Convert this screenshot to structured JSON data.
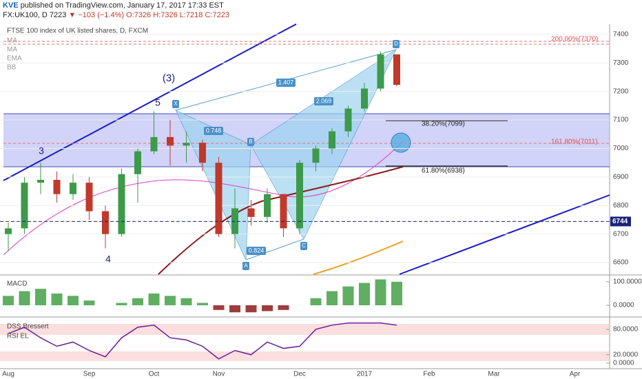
{
  "header": {
    "author": "KVE",
    "published": "published on TradingView.com, January 17, 2017 17:33 EST",
    "symbol": "FX:UK100, D",
    "last": "7223",
    "change": "▼ −103 (−1.4%)",
    "ohlc": "O:7326 H:7326 L:7218 C:7223"
  },
  "annotations": {
    "waves": [
      "3",
      "4",
      "5",
      "(3)"
    ],
    "points": [
      "X",
      "A",
      "B",
      "C",
      "D"
    ],
    "ratios": [
      "1.407",
      "2.069",
      "0.748",
      "0.824"
    ],
    "fib": [
      "200.00%(7370)",
      "161.80%(7011)",
      "38.20%(7099)",
      "61.80%(6938)"
    ]
  },
  "chart_data": [
    {
      "type": "candlestick",
      "title": "FTSE 100 index of UK listed shares, D, FXCM",
      "indicators": [
        "MA",
        "MA",
        "EMA",
        "BB"
      ],
      "categories": [
        "Aug",
        null,
        null,
        null,
        null,
        "Sep",
        null,
        null,
        null,
        "Oct",
        null,
        null,
        null,
        "Nov",
        null,
        null,
        null,
        null,
        "Dec",
        null,
        null,
        null,
        "2017",
        null,
        null,
        null,
        "Feb",
        null,
        null,
        null,
        "Mar",
        null,
        null,
        null,
        null,
        "Apr",
        null
      ],
      "open": [
        6700,
        6720,
        6880,
        6890,
        6840,
        6880,
        6780,
        6700,
        6910,
        6990,
        7040,
        7010,
        7020,
        6950,
        6700,
        6790,
        6760,
        6840,
        6720,
        6950,
        7000,
        7060,
        7140,
        7210,
        7330,
        null,
        null,
        null,
        null,
        null,
        null,
        null,
        null,
        null,
        null,
        null,
        null
      ],
      "high": [
        6740,
        6900,
        6950,
        6920,
        6910,
        6900,
        6800,
        6930,
        7000,
        7130,
        7100,
        7060,
        7030,
        6970,
        6860,
        6820,
        6860,
        6840,
        6960,
        7010,
        7070,
        7150,
        7230,
        7340,
        7330,
        null,
        null,
        null,
        null,
        null,
        null,
        null,
        null,
        null,
        null,
        null,
        null
      ],
      "low": [
        6640,
        6700,
        6840,
        6810,
        6820,
        6750,
        6650,
        6690,
        6810,
        6980,
        6940,
        6950,
        6920,
        6690,
        6650,
        6730,
        6740,
        6690,
        6700,
        6920,
        6980,
        7040,
        7130,
        7200,
        7218,
        null,
        null,
        null,
        null,
        null,
        null,
        null,
        null,
        null,
        null,
        null,
        null
      ],
      "close": [
        6720,
        6880,
        6890,
        6840,
        6880,
        6780,
        6700,
        6910,
        6990,
        7040,
        7010,
        7020,
        6950,
        6700,
        6790,
        6760,
        6840,
        6720,
        6950,
        7000,
        7060,
        7140,
        7210,
        7330,
        7223,
        null,
        null,
        null,
        null,
        null,
        null,
        null,
        null,
        null,
        null,
        null,
        null
      ],
      "up_color": "#3c9a4a",
      "down_color": "#c0392b",
      "hline": 6744,
      "ylim": [
        6559,
        7436
      ],
      "yticks": [
        6600,
        6700,
        6800,
        6900,
        7000,
        7100,
        7200,
        7300,
        7400
      ],
      "grid": true
    },
    {
      "type": "bar",
      "title": "MACD",
      "values": [
        40,
        60,
        70,
        50,
        40,
        20,
        0,
        10,
        30,
        50,
        40,
        30,
        10,
        -20,
        -30,
        -30,
        -25,
        -20,
        0,
        30,
        60,
        80,
        95,
        110,
        100
      ],
      "colors": [
        "#43a047",
        "#8e1b1b"
      ],
      "ylim": [
        -44,
        126
      ],
      "yticks": [
        {
          "value": 100,
          "label": "100.0000"
        },
        {
          "value": 0,
          "label": "0.0000"
        }
      ]
    },
    {
      "type": "line",
      "title": "DSS Bressert",
      "subtitle": "RSI EL",
      "series": [
        {
          "name": "DSS Bressert",
          "color": "#6a1b9a",
          "values": [
            70,
            85,
            60,
            40,
            50,
            30,
            15,
            60,
            85,
            90,
            60,
            55,
            40,
            10,
            30,
            20,
            50,
            35,
            40,
            80,
            90,
            95,
            95,
            95,
            90
          ]
        }
      ],
      "ylim": [
        -13,
        106
      ],
      "yticks": [
        {
          "value": 80,
          "label": "80.0000"
        },
        {
          "value": 20,
          "label": "20.0000"
        },
        {
          "value": 0,
          "label": "0.0000"
        }
      ]
    }
  ]
}
